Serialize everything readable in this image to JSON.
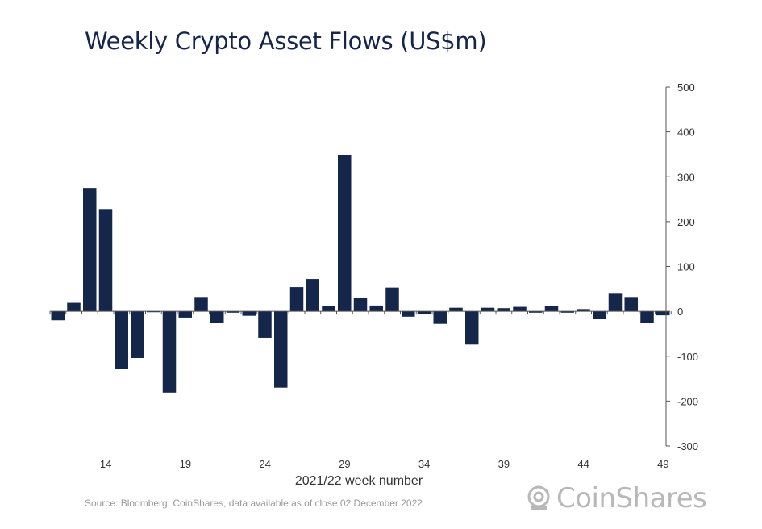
{
  "chart_data": {
    "type": "bar",
    "title": "Weekly Crypto Asset Flows (US$m)",
    "xlabel": "2021/22 week number",
    "ylabel": "",
    "ylim": [
      -300,
      500
    ],
    "yticks": [
      500,
      400,
      300,
      200,
      100,
      0,
      -100,
      -200,
      -300
    ],
    "xtick_labels": [
      "14",
      "19",
      "24",
      "29",
      "34",
      "39",
      "44",
      "49"
    ],
    "weeks": [
      11,
      12,
      13,
      14,
      15,
      16,
      17,
      18,
      19,
      20,
      21,
      22,
      23,
      24,
      25,
      26,
      27,
      28,
      29,
      30,
      31,
      32,
      33,
      34,
      35,
      36,
      37,
      38,
      39,
      40,
      41,
      42,
      43,
      44,
      45,
      46,
      47,
      48,
      49
    ],
    "values": [
      -20,
      19,
      275,
      228,
      -128,
      -104,
      -2,
      -181,
      -14,
      32,
      -26,
      -3,
      -10,
      -59,
      -170,
      54,
      72,
      11,
      349,
      29,
      13,
      53,
      -12,
      -7,
      -28,
      8,
      -74,
      8,
      7,
      10,
      -3,
      12,
      -3,
      5,
      -16,
      41,
      32,
      -25,
      -9
    ],
    "bar_color": "#14264a",
    "y_axis_position": "right",
    "grid": false,
    "source": "Source: Bloomberg, CoinShares, data available as of close 02 December 2022"
  },
  "logo": {
    "text": "CoinShares"
  }
}
